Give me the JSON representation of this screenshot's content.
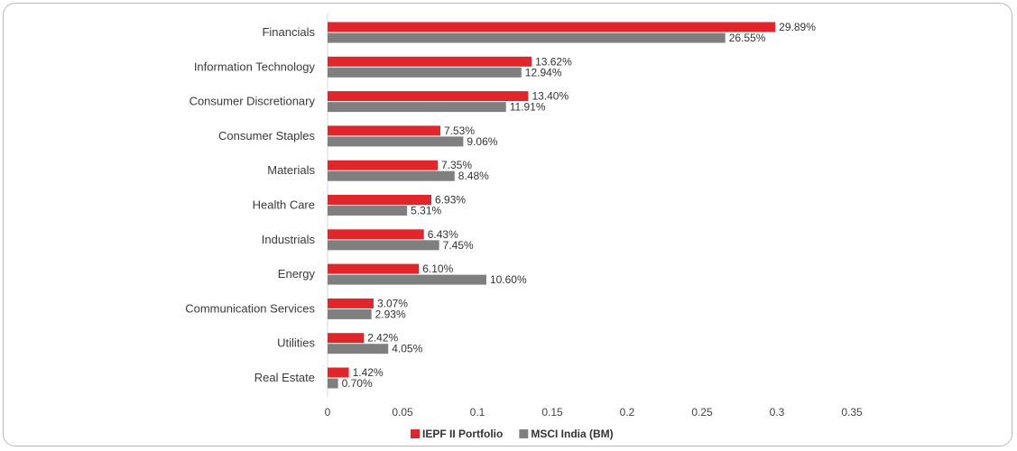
{
  "chart_data": {
    "type": "bar",
    "orientation": "horizontal",
    "categories": [
      "Financials",
      "Information Technology",
      "Consumer Discretionary",
      "Consumer Staples",
      "Materials",
      "Health Care",
      "Industrials",
      "Energy",
      "Communication Services",
      "Utilities",
      "Real Estate"
    ],
    "series": [
      {
        "name": "IEPF II Portfolio",
        "color": "#e0262a",
        "values": [
          0.2989,
          0.1362,
          0.134,
          0.0753,
          0.0735,
          0.0693,
          0.0643,
          0.061,
          0.0307,
          0.0242,
          0.0142
        ],
        "labels": [
          "29.89%",
          "13.62%",
          "13.40%",
          "7.53%",
          "7.35%",
          "6.93%",
          "6.43%",
          "6.10%",
          "3.07%",
          "2.42%",
          "1.42%"
        ]
      },
      {
        "name": "MSCI India (BM)",
        "color": "#7f7f7f",
        "values": [
          0.2655,
          0.1294,
          0.1191,
          0.0906,
          0.0848,
          0.0531,
          0.0745,
          0.106,
          0.0293,
          0.0405,
          0.007
        ],
        "labels": [
          "26.55%",
          "12.94%",
          "11.91%",
          "9.06%",
          "8.48%",
          "5.31%",
          "7.45%",
          "10.60%",
          "2.93%",
          "4.05%",
          "0.70%"
        ]
      }
    ],
    "xlim": [
      0,
      0.35
    ],
    "xticks": [
      0,
      0.05,
      0.1,
      0.15,
      0.2,
      0.25,
      0.3,
      0.35
    ],
    "xtick_labels": [
      "0",
      "0.05",
      "0.1",
      "0.15",
      "0.2",
      "0.25",
      "0.3",
      "0.35"
    ],
    "grid": false,
    "legend_position": "bottom-center"
  }
}
